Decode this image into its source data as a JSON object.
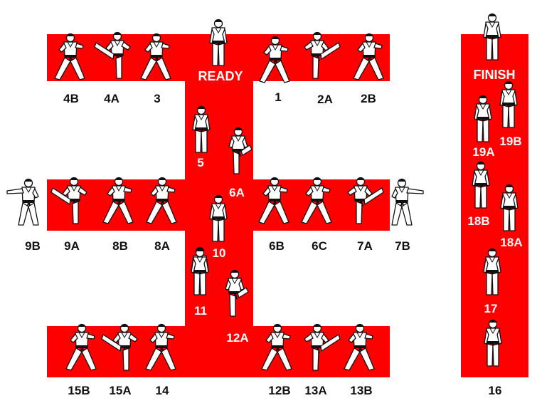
{
  "colors": {
    "band": "#ff0000",
    "figure_outline": "#111111",
    "belt": "#111111"
  },
  "ready_label": "READY",
  "finish_label": "FINISH",
  "steps": {
    "s1": "1",
    "s2a": "2A",
    "s2b": "2B",
    "s3": "3",
    "s4a": "4A",
    "s4b": "4B",
    "s5": "5",
    "s6a": "6A",
    "s6b": "6B",
    "s6c": "6C",
    "s7a": "7A",
    "s7b": "7B",
    "s8a": "8A",
    "s8b": "8B",
    "s9a": "9A",
    "s9b": "9B",
    "s10": "10",
    "s11": "11",
    "s12a": "12A",
    "s12b": "12B",
    "s13a": "13A",
    "s13b": "13B",
    "s14": "14",
    "s15a": "15A",
    "s15b": "15B",
    "s16": "16",
    "s17": "17",
    "s18a": "18A",
    "s18b": "18B",
    "s19a": "19A",
    "s19b": "19B"
  },
  "figures": [
    {
      "name": "figure-ready",
      "pose": "stand",
      "kick": 0
    },
    {
      "name": "figure-1",
      "pose": "stance",
      "kick": 0
    },
    {
      "name": "figure-2a",
      "pose": "kick",
      "kick": 1
    },
    {
      "name": "figure-2b",
      "pose": "stance",
      "kick": 0
    },
    {
      "name": "figure-3",
      "pose": "stance",
      "kick": 0
    },
    {
      "name": "figure-4a",
      "pose": "kick",
      "kick": -1
    },
    {
      "name": "figure-4b",
      "pose": "stance",
      "kick": 0
    },
    {
      "name": "figure-5",
      "pose": "stand",
      "kick": 0
    },
    {
      "name": "figure-6a-kick",
      "pose": "kickfront",
      "kick": 0
    },
    {
      "name": "figure-6a",
      "pose": "stand",
      "kick": 0
    },
    {
      "name": "figure-10",
      "pose": "stand",
      "kick": 0
    },
    {
      "name": "figure-11",
      "pose": "stand",
      "kick": 0
    },
    {
      "name": "figure-12a",
      "pose": "kickfront",
      "kick": 0
    },
    {
      "name": "figure-6b",
      "pose": "stance",
      "kick": 0
    },
    {
      "name": "figure-6c",
      "pose": "stance",
      "kick": 0
    },
    {
      "name": "figure-7a",
      "pose": "kick",
      "kick": 1
    },
    {
      "name": "figure-7b",
      "pose": "punch",
      "kick": 1
    },
    {
      "name": "figure-8a",
      "pose": "stance",
      "kick": 0
    },
    {
      "name": "figure-8b",
      "pose": "stance",
      "kick": 0
    },
    {
      "name": "figure-9a",
      "pose": "kick",
      "kick": -1
    },
    {
      "name": "figure-9b",
      "pose": "punch",
      "kick": -1
    },
    {
      "name": "figure-12b",
      "pose": "stance",
      "kick": 0
    },
    {
      "name": "figure-13a",
      "pose": "kick",
      "kick": 1
    },
    {
      "name": "figure-13b",
      "pose": "stance",
      "kick": 0
    },
    {
      "name": "figure-14",
      "pose": "stance",
      "kick": 0
    },
    {
      "name": "figure-15a",
      "pose": "kick",
      "kick": -1
    },
    {
      "name": "figure-15b",
      "pose": "stance",
      "kick": 0
    },
    {
      "name": "figure-finish",
      "pose": "stand",
      "kick": 0
    },
    {
      "name": "figure-19a",
      "pose": "stand",
      "kick": 0
    },
    {
      "name": "figure-19b",
      "pose": "stand",
      "kick": 0
    },
    {
      "name": "figure-18b",
      "pose": "stand",
      "kick": 0
    },
    {
      "name": "figure-18a",
      "pose": "stand",
      "kick": 0
    },
    {
      "name": "figure-17",
      "pose": "stand",
      "kick": 0
    },
    {
      "name": "figure-16",
      "pose": "stand",
      "kick": 0
    }
  ]
}
